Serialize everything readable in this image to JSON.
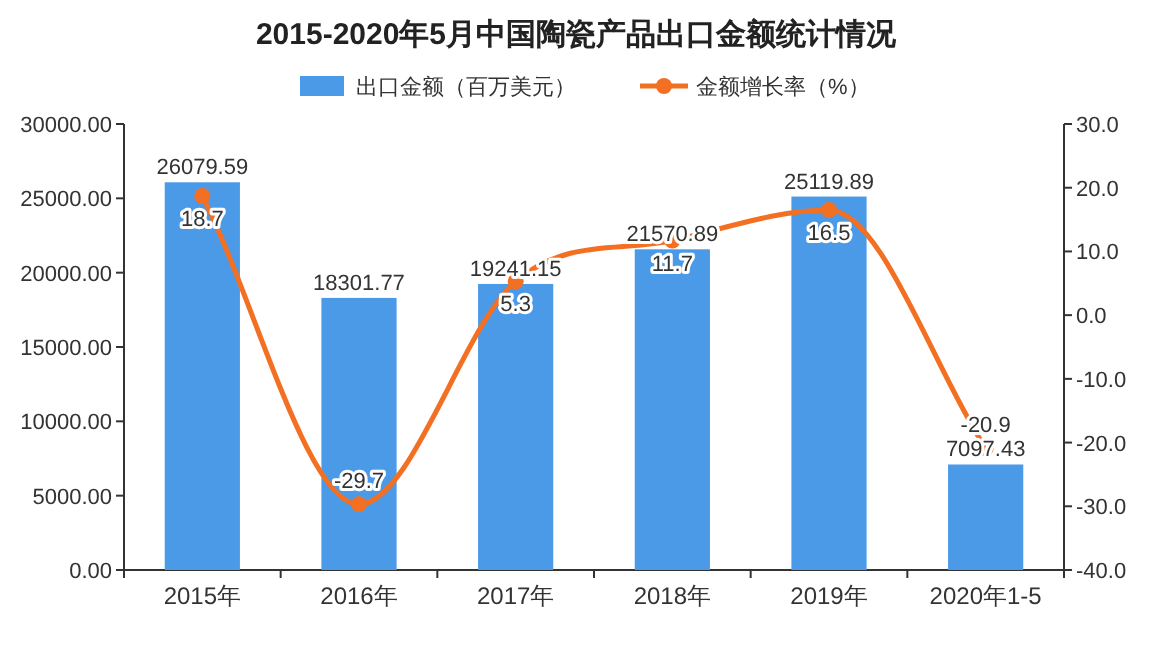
{
  "chart_data": {
    "type": "bar",
    "title": "2015-2020年5月中国陶瓷产品出口金额统计情况",
    "categories": [
      "2015年",
      "2016年",
      "2017年",
      "2018年",
      "2019年",
      "2020年1-5"
    ],
    "series": [
      {
        "name": "出口金额（百万美元）",
        "color": "#4a9ae8",
        "values": [
          26079.59,
          18301.77,
          19241.15,
          21570.89,
          25119.89,
          7097.43
        ]
      },
      {
        "name": "金额增长率（%）",
        "type": "line",
        "axis": "y2",
        "color": "#f36f21",
        "marker": "circle",
        "values": [
          18.7,
          -29.7,
          5.3,
          11.7,
          16.5,
          -20.9
        ]
      }
    ],
    "ylim": [
      0,
      30000
    ],
    "yticks": [
      {
        "value": 0,
        "label": "0.00"
      },
      {
        "value": 5000,
        "label": "5000.00"
      },
      {
        "value": 10000,
        "label": "10000.00"
      },
      {
        "value": 15000,
        "label": "15000.00"
      },
      {
        "value": 20000,
        "label": "20000.00"
      },
      {
        "value": 25000,
        "label": "25000.00"
      },
      {
        "value": 30000,
        "label": "30000.00"
      }
    ],
    "y2lim": [
      -40,
      30
    ],
    "y2ticks": [
      {
        "value": -40,
        "label": "-40.0"
      },
      {
        "value": -30,
        "label": "-30.0"
      },
      {
        "value": -20,
        "label": "-20.0"
      },
      {
        "value": -10,
        "label": "-10.0"
      },
      {
        "value": 0,
        "label": "0.0"
      },
      {
        "value": 10,
        "label": "10.0"
      },
      {
        "value": 20,
        "label": "20.0"
      },
      {
        "value": 30,
        "label": "30.0"
      }
    ],
    "legend": "top",
    "data_labels": true
  }
}
